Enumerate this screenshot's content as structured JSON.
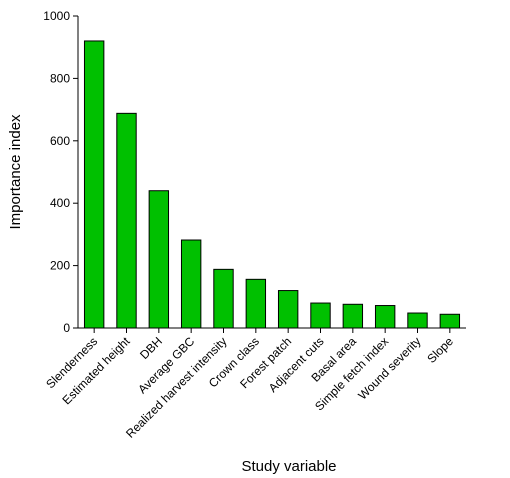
{
  "chart_data": {
    "type": "bar",
    "title": "",
    "xlabel": "Study variable",
    "ylabel": "Importance index",
    "ylim": [
      0,
      1000
    ],
    "yticks": [
      0,
      200,
      400,
      600,
      800,
      1000
    ],
    "grid": false,
    "categories": [
      "Slenderness",
      "Estimated height",
      "DBH",
      "Average GBC",
      "Realized harvest intensity",
      "Crown class",
      "Forest patch",
      "Adjacent cuts",
      "Basal area",
      "Simple fetch index",
      "Wound severity",
      "Slope"
    ],
    "values": [
      920,
      688,
      440,
      282,
      188,
      156,
      120,
      80,
      76,
      72,
      48,
      44
    ],
    "bar_color": "#00c000",
    "bar_edge_color": "#000000"
  }
}
